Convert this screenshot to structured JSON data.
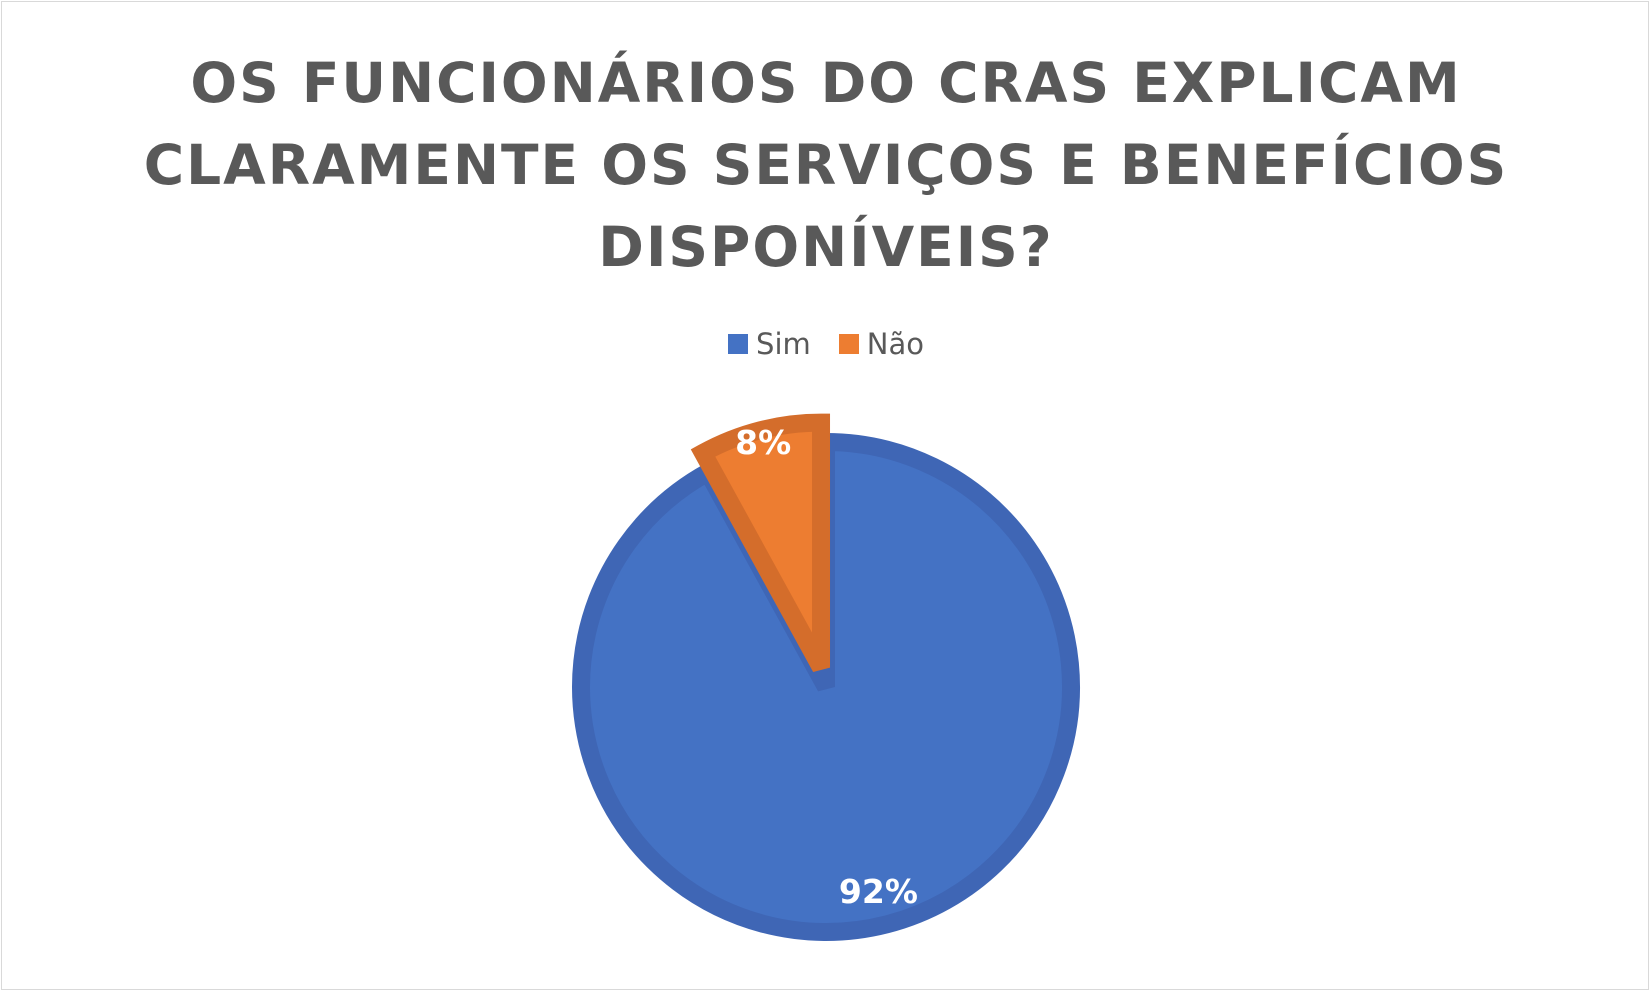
{
  "chart_data": {
    "type": "pie",
    "title_lines": [
      "OS FUNCIONÁRIOS DO CRAS EXPLICAM",
      "CLARAMENTE OS SERVIÇOS E BENEFÍCIOS",
      "DISPONÍVEIS?"
    ],
    "categories": [
      "Sim",
      "Não"
    ],
    "values": [
      92,
      8
    ],
    "data_labels": [
      "92%",
      "8%"
    ],
    "colors": [
      "#4472c4",
      "#ed7d31"
    ],
    "border_colors": [
      "#3f66b5",
      "#d46d2b"
    ],
    "legend_position": "top"
  },
  "colors": {
    "title": "#595959",
    "legend_text": "#595959",
    "frame_border": "#d9d9d9",
    "background": "#ffffff"
  }
}
